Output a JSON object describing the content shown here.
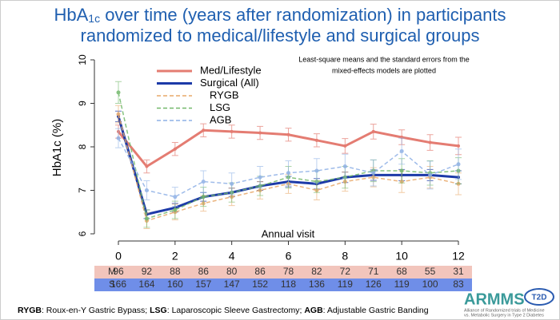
{
  "chart_data": {
    "type": "line",
    "title": {
      "prefix": "HbA",
      "subscript": "1c",
      "line1": " over time (years after randomization) in participants",
      "line2": "randomized to medical/lifestyle and surgical groups"
    },
    "ylabel": "HbA1c (%)",
    "xlabel": "Annual visit",
    "annotation": [
      "Least-square means and the standard errors from the",
      "mixed-effects models are plotted"
    ],
    "x": [
      0,
      1,
      2,
      3,
      4,
      5,
      6,
      7,
      8,
      9,
      10,
      11,
      12
    ],
    "xlim": [
      0,
      12
    ],
    "xticks": [
      0,
      2,
      4,
      6,
      8,
      10,
      12
    ],
    "ylim": [
      6,
      10
    ],
    "yticks": [
      6,
      7,
      8,
      9,
      10
    ],
    "series": [
      {
        "name": "Med/Lifestyle",
        "color": "#e47c72",
        "dashed": false,
        "width": 3,
        "values": [
          8.35,
          7.55,
          7.95,
          8.38,
          8.35,
          8.32,
          8.28,
          8.15,
          8.02,
          8.35,
          8.22,
          8.1,
          8.02
        ],
        "errors": [
          0.15,
          0.15,
          0.15,
          0.15,
          0.15,
          0.15,
          0.15,
          0.15,
          0.17,
          0.17,
          0.17,
          0.18,
          0.2
        ]
      },
      {
        "name": "Surgical (All)",
        "color": "#1c3aa8",
        "dashed": false,
        "width": 3,
        "values": [
          8.7,
          6.45,
          6.6,
          6.85,
          6.95,
          7.1,
          7.2,
          7.15,
          7.3,
          7.35,
          7.35,
          7.35,
          7.3
        ],
        "errors": [
          0.12,
          0.1,
          0.1,
          0.1,
          0.1,
          0.1,
          0.12,
          0.12,
          0.12,
          0.12,
          0.13,
          0.13,
          0.15
        ]
      },
      {
        "name": "RYGB",
        "color": "#e8a868",
        "dashed": true,
        "width": 1.5,
        "values": [
          8.75,
          6.3,
          6.5,
          6.7,
          6.85,
          7.0,
          7.15,
          7.0,
          7.2,
          7.3,
          7.2,
          7.3,
          7.15
        ],
        "errors": [
          0.2,
          0.18,
          0.18,
          0.18,
          0.2,
          0.2,
          0.22,
          0.22,
          0.22,
          0.22,
          0.25,
          0.25,
          0.25
        ]
      },
      {
        "name": "LSG",
        "color": "#72b86a",
        "dashed": true,
        "width": 1.5,
        "values": [
          9.25,
          6.35,
          6.55,
          6.85,
          6.95,
          7.1,
          7.3,
          7.2,
          7.3,
          7.45,
          7.45,
          7.4,
          7.45
        ],
        "errors": [
          0.25,
          0.2,
          0.2,
          0.22,
          0.22,
          0.22,
          0.25,
          0.25,
          0.25,
          0.25,
          0.28,
          0.28,
          0.3
        ]
      },
      {
        "name": "AGB",
        "color": "#8eb0e6",
        "dashed": true,
        "width": 1.5,
        "values": [
          8.2,
          7.0,
          6.85,
          7.2,
          7.15,
          7.3,
          7.4,
          7.45,
          7.55,
          7.4,
          7.9,
          7.35,
          7.6
        ],
        "errors": [
          0.22,
          0.22,
          0.22,
          0.25,
          0.25,
          0.25,
          0.28,
          0.28,
          0.28,
          0.3,
          0.3,
          0.32,
          0.35
        ]
      }
    ],
    "table": [
      {
        "label": "M",
        "color": "#f2c5bc",
        "values": [
          96,
          92,
          88,
          86,
          80,
          86,
          78,
          82,
          72,
          71,
          68,
          55,
          31
        ]
      },
      {
        "label": "S",
        "color": "#6f8ee8",
        "values": [
          166,
          164,
          160,
          157,
          147,
          152,
          118,
          136,
          119,
          126,
          119,
          100,
          83
        ]
      }
    ]
  },
  "footnote": [
    {
      "abbr": "RYGB",
      "text": ": Roux-en-Y Gastric Bypass; "
    },
    {
      "abbr": "LSG",
      "text": ": Laparoscopic Sleeve Gastrectomy; "
    },
    {
      "abbr": "AGB",
      "text": ": Adjustable Gastric Banding"
    }
  ],
  "logo": {
    "name": "ARMMS",
    "badge": "T2D",
    "tagline": [
      "Alliance of Randomized trials of Medicine",
      "vs. Metabolic Surgery in Type 2 Diabetes"
    ]
  }
}
